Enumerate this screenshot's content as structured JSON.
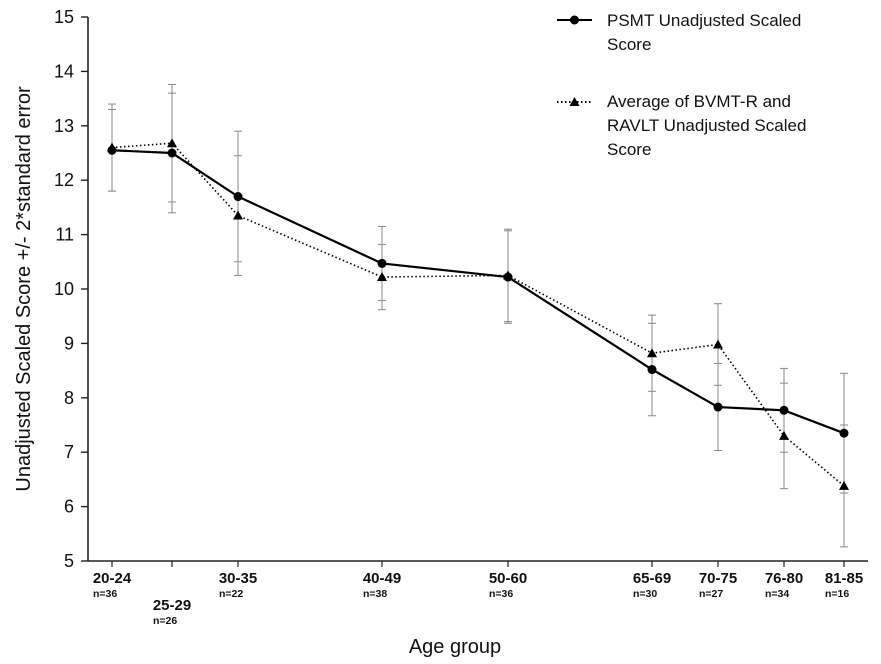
{
  "chart_data": {
    "type": "line",
    "xlabel": "Age group",
    "ylabel": "Unadjusted Scaled Score +/- 2*standard error",
    "ylim": [
      5,
      15
    ],
    "yticks": [
      5,
      6,
      7,
      8,
      9,
      10,
      11,
      12,
      13,
      14,
      15
    ],
    "legend_position": "top-right",
    "categories": [
      {
        "label": "20-24",
        "n": "n=36",
        "x": 22
      },
      {
        "label": "25-29",
        "n": "n=26",
        "x": 27
      },
      {
        "label": "30-35",
        "n": "n=22",
        "x": 32.5
      },
      {
        "label": "40-49",
        "n": "n=38",
        "x": 44.5
      },
      {
        "label": "50-60",
        "n": "n=36",
        "x": 55
      },
      {
        "label": "65-69",
        "n": "n=30",
        "x": 67
      },
      {
        "label": "70-75",
        "n": "n=27",
        "x": 72.5
      },
      {
        "label": "76-80",
        "n": "n=34",
        "x": 78
      },
      {
        "label": "81-85",
        "n": "n=16",
        "x": 83
      }
    ],
    "series": [
      {
        "name": "PSMT Unadjusted Scaled Score",
        "legend_lines": [
          "PSMT Unadjusted Scaled",
          "Score"
        ],
        "style": "solid",
        "marker": "circle",
        "values": [
          12.55,
          12.5,
          11.7,
          10.47,
          10.22,
          8.52,
          7.83,
          7.77,
          7.35
        ],
        "error": [
          0.75,
          1.1,
          1.2,
          0.68,
          0.85,
          0.85,
          0.8,
          0.77,
          1.1
        ]
      },
      {
        "name": "Average of BVMT-R and RAVLT Unadjusted Scaled Score",
        "legend_lines": [
          "Average of BVMT-R and",
          "RAVLT Unadjusted Scaled",
          "Score"
        ],
        "style": "dotted",
        "marker": "triangle",
        "values": [
          12.6,
          12.68,
          11.35,
          10.22,
          10.25,
          8.82,
          8.98,
          7.3,
          6.38
        ],
        "error": [
          0.8,
          1.08,
          1.1,
          0.6,
          0.85,
          0.7,
          0.75,
          0.97,
          1.12
        ]
      }
    ]
  }
}
